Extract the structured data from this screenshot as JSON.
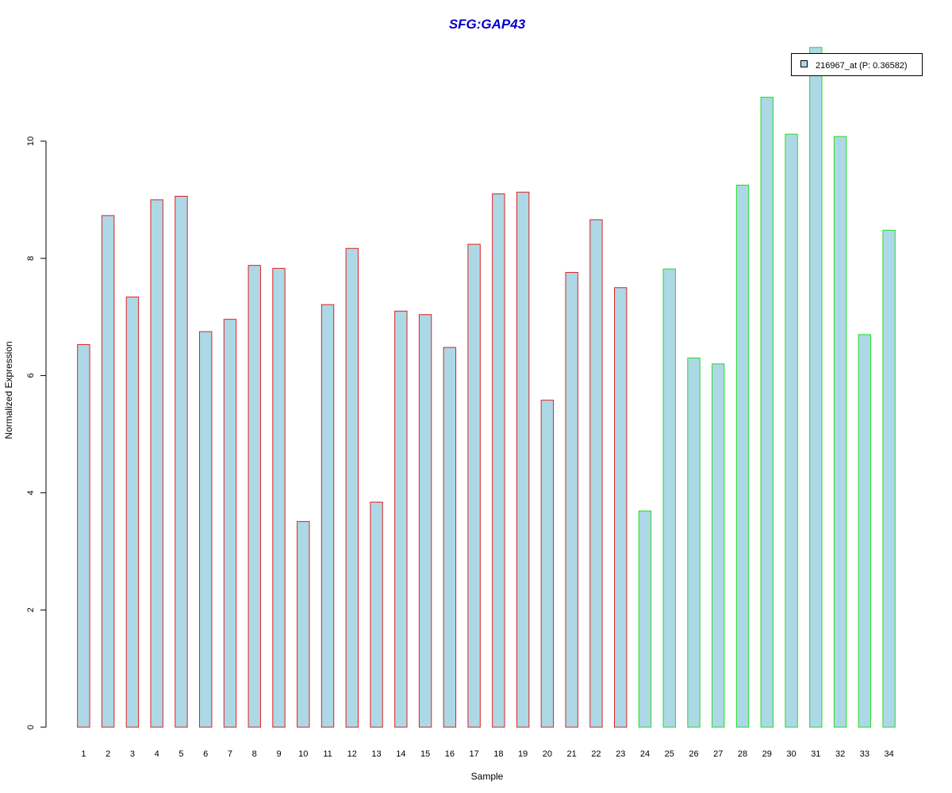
{
  "chart_data": {
    "type": "bar",
    "title": "SFG:GAP43",
    "xlabel": "Sample",
    "ylabel": "Normalized Expression",
    "ylim": [
      0,
      11.7
    ],
    "yticks": [
      0,
      2,
      4,
      6,
      8,
      10
    ],
    "grid": false,
    "legend_position": "top-right",
    "categories": [
      "1",
      "2",
      "3",
      "4",
      "5",
      "6",
      "7",
      "8",
      "9",
      "10",
      "11",
      "12",
      "13",
      "14",
      "15",
      "16",
      "17",
      "18",
      "19",
      "20",
      "21",
      "22",
      "23",
      "24",
      "25",
      "26",
      "27",
      "28",
      "29",
      "30",
      "31",
      "32",
      "33",
      "34"
    ],
    "series": [
      {
        "name": "216967_at (P: 0.36582)",
        "values": [
          6.53,
          8.73,
          7.34,
          9.0,
          9.06,
          6.75,
          6.96,
          7.88,
          7.83,
          3.51,
          7.21,
          8.17,
          3.84,
          7.1,
          7.04,
          6.48,
          8.24,
          9.1,
          9.13,
          5.58,
          7.76,
          8.66,
          7.5,
          3.69,
          7.82,
          6.3,
          6.2,
          9.25,
          10.75,
          10.12,
          11.6,
          10.08,
          6.7,
          8.48
        ]
      }
    ],
    "groups": [
      {
        "from": 1,
        "to": 23,
        "border_color": "#e02020"
      },
      {
        "from": 24,
        "to": 34,
        "border_color": "#22dd22"
      }
    ],
    "colors": {
      "bar_fill": "#add8e6",
      "title": "#0000cc",
      "axis": "#000000"
    }
  }
}
